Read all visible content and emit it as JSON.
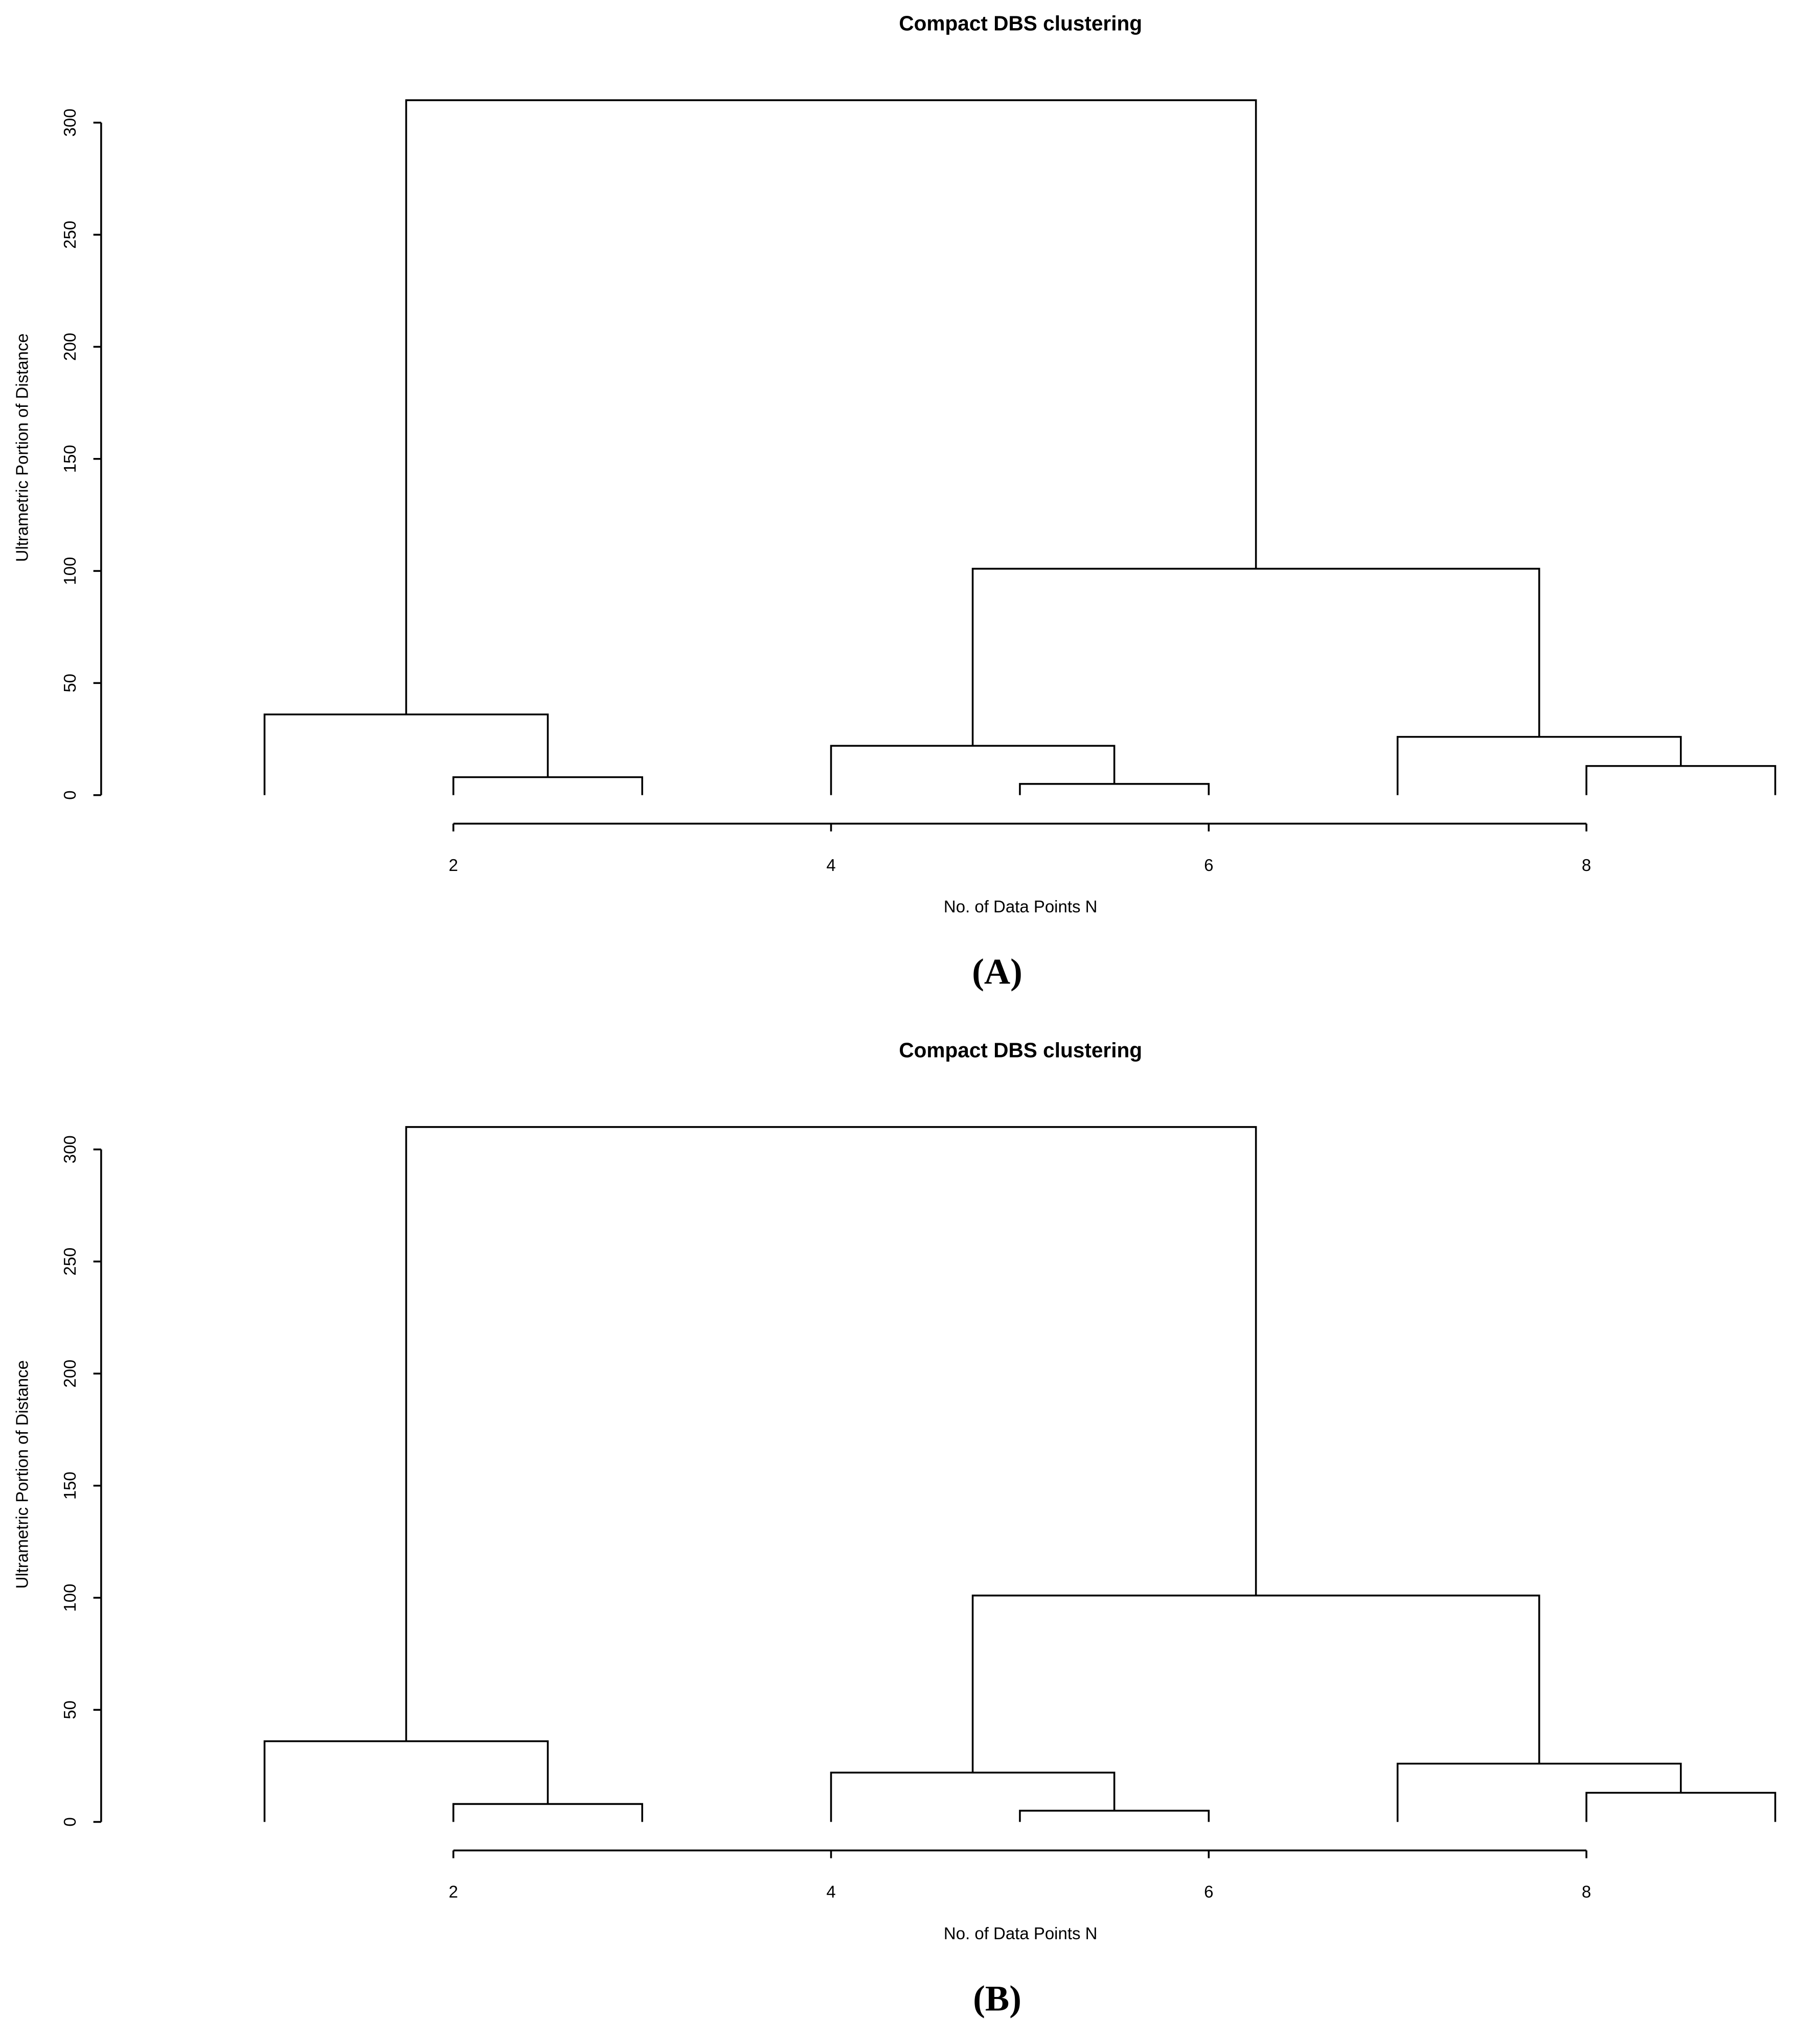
{
  "chart_data": [
    {
      "type": "dendrogram",
      "title": "Compact DBS clustering",
      "xlabel": "No. of Data Points N",
      "ylabel": "Ultrametric Portion of Distance",
      "caption": "(A)",
      "merge": [
        [
          -2,
          -3
        ],
        [
          -5,
          -6
        ],
        [
          -8,
          -9
        ],
        [
          -1,
          1
        ],
        [
          -4,
          2
        ],
        [
          -7,
          3
        ],
        [
          5,
          6
        ],
        [
          4,
          7
        ]
      ],
      "heights": [
        8,
        5,
        13,
        36,
        22,
        26,
        101,
        310
      ],
      "xlim": [
        1,
        9
      ],
      "xticks": [
        2,
        4,
        6,
        8
      ],
      "ylim": [
        0,
        310
      ],
      "yticks": [
        0,
        50,
        100,
        150,
        200,
        250,
        300
      ],
      "color": "#000000"
    },
    {
      "type": "dendrogram",
      "title": "Compact DBS clustering",
      "xlabel": "No. of Data Points N",
      "ylabel": "Ultrametric Portion of Distance",
      "caption": "(B)",
      "merge": [
        [
          -2,
          -3
        ],
        [
          -5,
          -6
        ],
        [
          -8,
          -9
        ],
        [
          -1,
          1
        ],
        [
          -4,
          2
        ],
        [
          -7,
          3
        ],
        [
          5,
          6
        ],
        [
          4,
          7
        ]
      ],
      "heights": [
        8,
        5,
        13,
        36,
        22,
        26,
        101,
        310
      ],
      "xlim": [
        1,
        9
      ],
      "xticks": [
        2,
        4,
        6,
        8
      ],
      "ylim": [
        0,
        310
      ],
      "yticks": [
        0,
        50,
        100,
        150,
        200,
        250,
        300
      ],
      "color": "#000000"
    }
  ]
}
